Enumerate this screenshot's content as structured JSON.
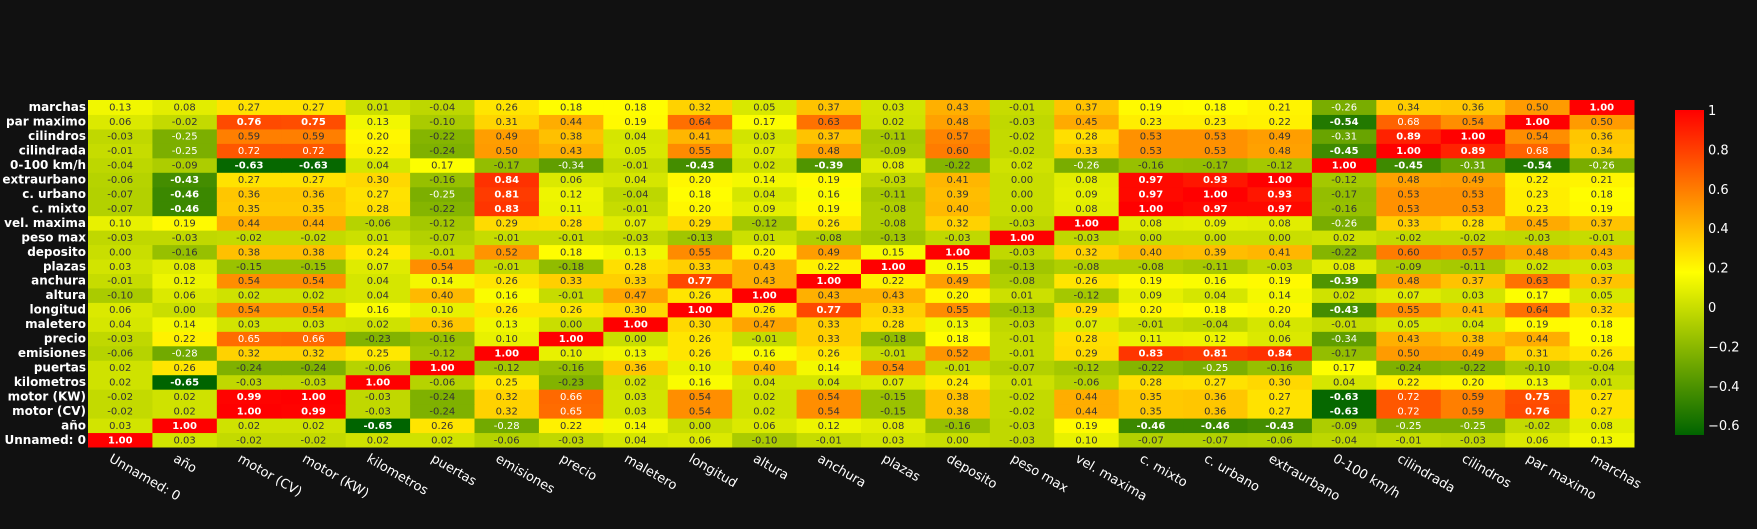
{
  "chart_data": {
    "type": "heatmap",
    "x_labels": [
      "Unnamed: 0",
      "año",
      "motor (CV)",
      "motor (KW)",
      "kilometros",
      "puertas",
      "emisiones",
      "precio",
      "maletero",
      "longitud",
      "altura",
      "anchura",
      "plazas",
      "deposito",
      "peso max",
      "vel. maxima",
      "c. mixto",
      "c. urbano",
      "extraurbano",
      "0-100 km/h",
      "cilindrada",
      "cilindros",
      "par maximo",
      "marchas"
    ],
    "y_labels": [
      "Unnamed: 0",
      "año",
      "motor (CV)",
      "motor (KW)",
      "kilometros",
      "puertas",
      "emisiones",
      "precio",
      "maletero",
      "longitud",
      "altura",
      "anchura",
      "plazas",
      "deposito",
      "peso max",
      "vel. maxima",
      "c. mixto",
      "c. urbano",
      "extraurbano",
      "0-100 km/h",
      "cilindrada",
      "cilindros",
      "par maximo",
      "marchas"
    ],
    "z": [
      [
        1.0,
        0.03,
        -0.02,
        -0.02,
        0.02,
        0.02,
        -0.06,
        -0.03,
        0.04,
        0.06,
        -0.1,
        -0.01,
        0.03,
        0.0,
        -0.03,
        0.1,
        -0.07,
        -0.07,
        -0.06,
        -0.04,
        -0.01,
        -0.03,
        0.06,
        0.13
      ],
      [
        0.03,
        1.0,
        0.02,
        0.02,
        -0.65,
        0.26,
        -0.28,
        0.22,
        0.14,
        0.0,
        0.06,
        0.12,
        0.08,
        -0.16,
        -0.03,
        0.19,
        -0.46,
        -0.46,
        -0.43,
        -0.09,
        -0.25,
        -0.25,
        -0.02,
        0.08
      ],
      [
        -0.02,
        0.02,
        1.0,
        0.99,
        -0.03,
        -0.24,
        0.32,
        0.65,
        0.03,
        0.54,
        0.02,
        0.54,
        -0.15,
        0.38,
        -0.02,
        0.44,
        0.35,
        0.36,
        0.27,
        -0.63,
        0.72,
        0.59,
        0.76,
        0.27
      ],
      [
        -0.02,
        0.02,
        0.99,
        1.0,
        -0.03,
        -0.24,
        0.32,
        0.66,
        0.03,
        0.54,
        0.02,
        0.54,
        -0.15,
        0.38,
        -0.02,
        0.44,
        0.35,
        0.36,
        0.27,
        -0.63,
        0.72,
        0.59,
        0.75,
        0.27
      ],
      [
        0.02,
        -0.65,
        -0.03,
        -0.03,
        1.0,
        -0.06,
        0.25,
        -0.23,
        0.02,
        0.16,
        0.04,
        0.04,
        0.07,
        0.24,
        0.01,
        -0.06,
        0.28,
        0.27,
        0.3,
        0.04,
        0.22,
        0.2,
        0.13,
        0.01
      ],
      [
        0.02,
        0.26,
        -0.24,
        -0.24,
        -0.06,
        1.0,
        -0.12,
        -0.16,
        0.36,
        0.1,
        0.4,
        0.14,
        0.54,
        -0.01,
        -0.07,
        -0.12,
        -0.22,
        -0.25,
        -0.16,
        0.17,
        -0.24,
        -0.22,
        -0.1,
        -0.04
      ],
      [
        -0.06,
        -0.28,
        0.32,
        0.32,
        0.25,
        -0.12,
        1.0,
        0.1,
        0.13,
        0.26,
        0.16,
        0.26,
        -0.01,
        0.52,
        -0.01,
        0.29,
        0.83,
        0.81,
        0.84,
        -0.17,
        0.5,
        0.49,
        0.31,
        0.26
      ],
      [
        -0.03,
        0.22,
        0.65,
        0.66,
        -0.23,
        -0.16,
        0.1,
        1.0,
        0.0,
        0.26,
        -0.01,
        0.33,
        -0.18,
        0.18,
        -0.01,
        0.28,
        0.11,
        0.12,
        0.06,
        -0.34,
        0.43,
        0.38,
        0.44,
        0.18
      ],
      [
        0.04,
        0.14,
        0.03,
        0.03,
        0.02,
        0.36,
        0.13,
        0.0,
        1.0,
        0.3,
        0.47,
        0.33,
        0.28,
        0.13,
        -0.03,
        0.07,
        -0.01,
        -0.04,
        0.04,
        -0.01,
        0.05,
        0.04,
        0.19,
        0.18
      ],
      [
        0.06,
        0.0,
        0.54,
        0.54,
        0.16,
        0.1,
        0.26,
        0.26,
        0.3,
        1.0,
        0.26,
        0.77,
        0.33,
        0.55,
        -0.13,
        0.29,
        0.2,
        0.18,
        0.2,
        -0.43,
        0.55,
        0.41,
        0.64,
        0.32
      ],
      [
        -0.1,
        0.06,
        0.02,
        0.02,
        0.04,
        0.4,
        0.16,
        -0.01,
        0.47,
        0.26,
        1.0,
        0.43,
        0.43,
        0.2,
        0.01,
        -0.12,
        0.09,
        0.04,
        0.14,
        0.02,
        0.07,
        0.03,
        0.17,
        0.05
      ],
      [
        -0.01,
        0.12,
        0.54,
        0.54,
        0.04,
        0.14,
        0.26,
        0.33,
        0.33,
        0.77,
        0.43,
        1.0,
        0.22,
        0.49,
        -0.08,
        0.26,
        0.19,
        0.16,
        0.19,
        -0.39,
        0.48,
        0.37,
        0.63,
        0.37
      ],
      [
        0.03,
        0.08,
        -0.15,
        -0.15,
        0.07,
        0.54,
        -0.01,
        -0.18,
        0.28,
        0.33,
        0.43,
        0.22,
        1.0,
        0.15,
        -0.13,
        -0.08,
        -0.08,
        -0.11,
        -0.03,
        0.08,
        -0.09,
        -0.11,
        0.02,
        0.03
      ],
      [
        0.0,
        -0.16,
        0.38,
        0.38,
        0.24,
        -0.01,
        0.52,
        0.18,
        0.13,
        0.55,
        0.2,
        0.49,
        0.15,
        1.0,
        -0.03,
        0.32,
        0.4,
        0.39,
        0.41,
        -0.22,
        0.6,
        0.57,
        0.48,
        0.43
      ],
      [
        -0.03,
        -0.03,
        -0.02,
        -0.02,
        0.01,
        -0.07,
        -0.01,
        -0.01,
        -0.03,
        -0.13,
        0.01,
        -0.08,
        -0.13,
        -0.03,
        1.0,
        -0.03,
        0.0,
        0.0,
        0.0,
        0.02,
        -0.02,
        -0.02,
        -0.03,
        -0.01
      ],
      [
        0.1,
        0.19,
        0.44,
        0.44,
        -0.06,
        -0.12,
        0.29,
        0.28,
        0.07,
        0.29,
        -0.12,
        0.26,
        -0.08,
        0.32,
        -0.03,
        1.0,
        0.08,
        0.09,
        0.08,
        -0.26,
        0.33,
        0.28,
        0.45,
        0.37
      ],
      [
        -0.07,
        -0.46,
        0.35,
        0.35,
        0.28,
        -0.22,
        0.83,
        0.11,
        -0.01,
        0.2,
        0.09,
        0.19,
        -0.08,
        0.4,
        0.0,
        0.08,
        1.0,
        0.97,
        0.97,
        -0.16,
        0.53,
        0.53,
        0.23,
        0.19
      ],
      [
        -0.07,
        -0.46,
        0.36,
        0.36,
        0.27,
        -0.25,
        0.81,
        0.12,
        -0.04,
        0.18,
        0.04,
        0.16,
        -0.11,
        0.39,
        0.0,
        0.09,
        0.97,
        1.0,
        0.93,
        -0.17,
        0.53,
        0.53,
        0.23,
        0.18
      ],
      [
        -0.06,
        -0.43,
        0.27,
        0.27,
        0.3,
        -0.16,
        0.84,
        0.06,
        0.04,
        0.2,
        0.14,
        0.19,
        -0.03,
        0.41,
        0.0,
        0.08,
        0.97,
        0.93,
        1.0,
        -0.12,
        0.48,
        0.49,
        0.22,
        0.21
      ],
      [
        -0.04,
        -0.09,
        -0.63,
        -0.63,
        0.04,
        0.17,
        -0.17,
        -0.34,
        -0.01,
        -0.43,
        0.02,
        -0.39,
        0.08,
        -0.22,
        0.02,
        -0.26,
        -0.16,
        -0.17,
        -0.12,
        1.0,
        -0.45,
        -0.31,
        -0.54,
        -0.26
      ],
      [
        -0.01,
        -0.25,
        0.72,
        0.72,
        0.22,
        -0.24,
        0.5,
        0.43,
        0.05,
        0.55,
        0.07,
        0.48,
        -0.09,
        0.6,
        -0.02,
        0.33,
        0.53,
        0.53,
        0.48,
        -0.45,
        1.0,
        0.89,
        0.68,
        0.34
      ],
      [
        -0.03,
        -0.25,
        0.59,
        0.59,
        0.2,
        -0.22,
        0.49,
        0.38,
        0.04,
        0.41,
        0.03,
        0.37,
        -0.11,
        0.57,
        -0.02,
        0.28,
        0.53,
        0.53,
        0.49,
        -0.31,
        0.89,
        1.0,
        0.54,
        0.36
      ],
      [
        0.06,
        -0.02,
        0.76,
        0.75,
        0.13,
        -0.1,
        0.31,
        0.44,
        0.19,
        0.64,
        0.17,
        0.63,
        0.02,
        0.48,
        -0.03,
        0.45,
        0.23,
        0.23,
        0.22,
        -0.54,
        0.68,
        0.54,
        1.0,
        0.5
      ],
      [
        0.13,
        0.08,
        0.27,
        0.27,
        0.01,
        -0.04,
        0.26,
        0.18,
        0.18,
        0.32,
        0.05,
        0.37,
        0.03,
        0.43,
        -0.01,
        0.37,
        0.19,
        0.18,
        0.21,
        -0.26,
        0.34,
        0.36,
        0.5,
        1.0
      ]
    ],
    "zmin": -0.65,
    "zmax": 1.0,
    "colorscale": [
      "#006400",
      "#FFFF00",
      "#FF0000"
    ],
    "colorbar_ticks": [
      1,
      0.8,
      0.6,
      0.4,
      0.2,
      0,
      -0.2,
      -0.4,
      -0.6
    ],
    "colorbar_tick_labels": [
      "1",
      "0.8",
      "0.6",
      "0.4",
      "0.2",
      "0",
      "−0.2",
      "−0.4",
      "−0.6"
    ],
    "background": "#111111"
  }
}
